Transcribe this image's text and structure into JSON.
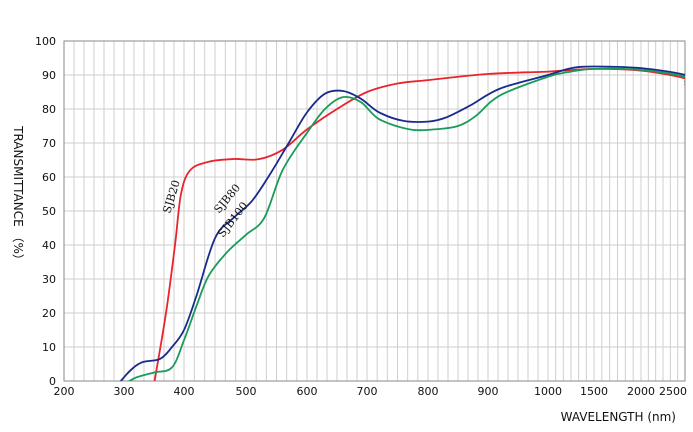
{
  "chart_data": {
    "type": "line",
    "title": "",
    "xlabel": "WAVELENGTH (nm)",
    "ylabel": "TRANSMITTANCE （%）",
    "ylim": [
      0,
      100
    ],
    "y_ticks": [
      "0",
      "10",
      "20",
      "30",
      "40",
      "50",
      "60",
      "70",
      "80",
      "90",
      "100"
    ],
    "x_ticks": [
      "200",
      "300",
      "400",
      "500",
      "600",
      "700",
      "800",
      "900",
      "1000",
      "1500",
      "2000",
      "2500"
    ],
    "x_scale": "piecewise: 100 nm per major division from 200 to 1000, then 500 nm per major division to 2500",
    "grid": true,
    "legend": "none",
    "series": [
      {
        "name": "SJB20",
        "color": "#e8252b",
        "points": [
          [
            350,
            -1
          ],
          [
            370,
            20
          ],
          [
            385,
            40
          ],
          [
            395,
            55
          ],
          [
            410,
            62
          ],
          [
            440,
            64.5
          ],
          [
            480,
            65.3
          ],
          [
            520,
            65.2
          ],
          [
            560,
            68
          ],
          [
            600,
            74
          ],
          [
            650,
            80
          ],
          [
            700,
            85
          ],
          [
            750,
            87.5
          ],
          [
            800,
            88.5
          ],
          [
            900,
            90.3
          ],
          [
            1000,
            91
          ],
          [
            1500,
            91.8
          ],
          [
            2000,
            91.3
          ],
          [
            2500,
            89
          ],
          [
            2600,
            87
          ]
        ]
      },
      {
        "name": "SJB80",
        "color": "#1a2a8c",
        "points": [
          [
            290,
            -1
          ],
          [
            310,
            3
          ],
          [
            330,
            5.5
          ],
          [
            360,
            6.5
          ],
          [
            380,
            10
          ],
          [
            400,
            15
          ],
          [
            420,
            25
          ],
          [
            450,
            42
          ],
          [
            480,
            48
          ],
          [
            510,
            53
          ],
          [
            540,
            61
          ],
          [
            570,
            70
          ],
          [
            600,
            79
          ],
          [
            630,
            84.5
          ],
          [
            660,
            85.3
          ],
          [
            690,
            83
          ],
          [
            720,
            79
          ],
          [
            760,
            76.5
          ],
          [
            800,
            76.3
          ],
          [
            830,
            77.5
          ],
          [
            870,
            81
          ],
          [
            920,
            86
          ],
          [
            1000,
            90
          ],
          [
            1250,
            92
          ],
          [
            1500,
            92.5
          ],
          [
            2000,
            92
          ],
          [
            2500,
            90
          ],
          [
            2600,
            88
          ]
        ]
      },
      {
        "name": "SJB100",
        "color": "#1a9b5a",
        "points": [
          [
            300,
            -1
          ],
          [
            320,
            1
          ],
          [
            350,
            2.5
          ],
          [
            380,
            4
          ],
          [
            400,
            12
          ],
          [
            420,
            22
          ],
          [
            440,
            31
          ],
          [
            470,
            38
          ],
          [
            500,
            43
          ],
          [
            530,
            48
          ],
          [
            560,
            62
          ],
          [
            600,
            73
          ],
          [
            630,
            80
          ],
          [
            660,
            83.5
          ],
          [
            690,
            82
          ],
          [
            720,
            77
          ],
          [
            770,
            74
          ],
          [
            810,
            74
          ],
          [
            850,
            75
          ],
          [
            880,
            78
          ],
          [
            920,
            84
          ],
          [
            1000,
            89.5
          ],
          [
            1250,
            91
          ],
          [
            1500,
            91.8
          ],
          [
            2000,
            91.5
          ],
          [
            2500,
            89.5
          ],
          [
            2600,
            87.5
          ]
        ]
      }
    ]
  }
}
